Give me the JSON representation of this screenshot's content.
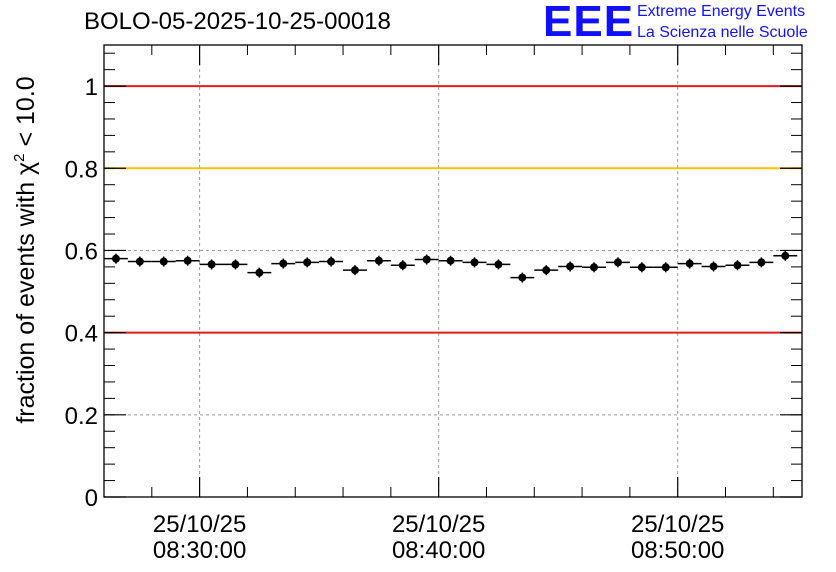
{
  "chart_data": {
    "type": "scatter",
    "title": "BOLO-05-2025-10-25-00018",
    "ylabel_prefix": "fraction of events with χ",
    "ylabel_sup": "2",
    "ylabel_suffix": " < 10.0",
    "xlim_minutes": [
      24,
      53.2
    ],
    "ylim": [
      0,
      1.1
    ],
    "yticks": [
      {
        "value": 0,
        "label": "0"
      },
      {
        "value": 0.2,
        "label": "0.2"
      },
      {
        "value": 0.4,
        "label": "0.4"
      },
      {
        "value": 0.6,
        "label": "0.6"
      },
      {
        "value": 0.8,
        "label": "0.8"
      },
      {
        "value": 1.0,
        "label": "1"
      }
    ],
    "xticks": [
      {
        "minute": 28,
        "date": "25/10/25",
        "time": "08:30:00"
      },
      {
        "minute": 38,
        "date": "25/10/25",
        "time": "08:40:00"
      },
      {
        "minute": 48,
        "date": "25/10/25",
        "time": "08:50:00"
      }
    ],
    "grid": true,
    "bin_width_minutes": 1,
    "bin_start_minute": 24,
    "values": [
      0.58,
      0.573,
      0.573,
      0.575,
      0.566,
      0.566,
      0.546,
      0.568,
      0.571,
      0.573,
      0.552,
      0.575,
      0.564,
      0.578,
      0.575,
      0.571,
      0.566,
      0.534,
      0.552,
      0.561,
      0.559,
      0.571,
      0.559,
      0.559,
      0.568,
      0.561,
      0.564,
      0.571,
      0.587
    ],
    "reference_lines": [
      {
        "value": 1.0,
        "color": "#e41a1c"
      },
      {
        "value": 0.8,
        "color": "#ffc107"
      },
      {
        "value": 0.4,
        "color": "#e41a1c"
      }
    ]
  },
  "logo": {
    "mark": "EEE",
    "line1": "Extreme Energy Events",
    "line2": "La Scienza nelle Scuole"
  },
  "colors": {
    "marker": "#000000",
    "grid": "#9a9a9a",
    "logo": "#1010ff"
  }
}
